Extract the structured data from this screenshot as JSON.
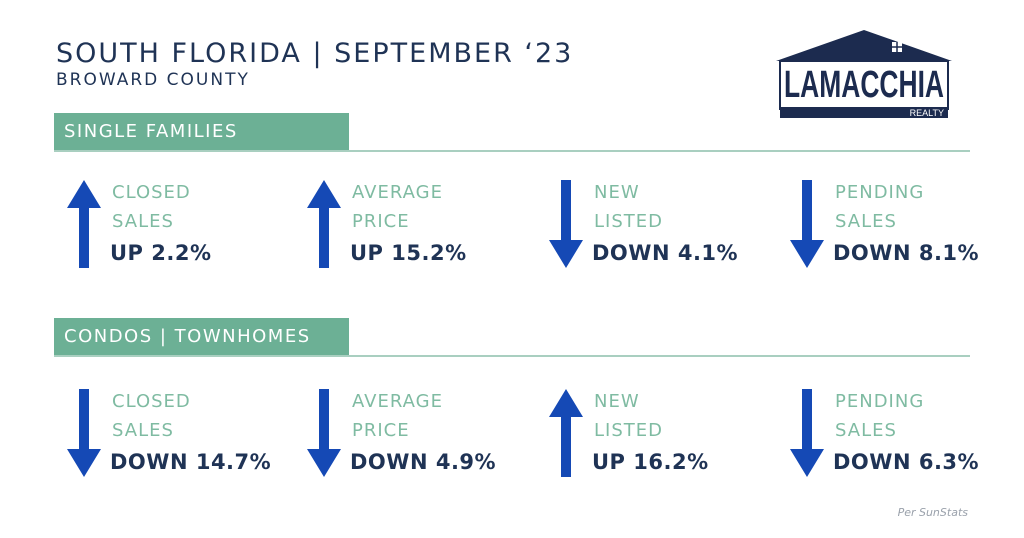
{
  "header": {
    "title": "SOUTH FLORIDA | SEPTEMBER ‘23",
    "subtitle": "BROWARD COUNTY"
  },
  "logo": {
    "text": "LAMACCHIA",
    "subtext": "REALTY",
    "color": "#1c2b4f"
  },
  "colors": {
    "accent_green": "#6cb095",
    "arrow_blue": "#1549b5",
    "label_green": "#7fbba2",
    "navy": "#1f3355"
  },
  "sections": [
    {
      "title": "SINGLE FAMILIES",
      "stats": [
        {
          "line1": "CLOSED",
          "line2": "SALES",
          "value": "UP 2.2%",
          "direction": "up"
        },
        {
          "line1": "AVERAGE",
          "line2": "PRICE",
          "value": "UP 15.2%",
          "direction": "up"
        },
        {
          "line1": "NEW",
          "line2": "LISTED",
          "value": "DOWN 4.1%",
          "direction": "down"
        },
        {
          "line1": "PENDING",
          "line2": "SALES",
          "value": "DOWN 8.1%",
          "direction": "down"
        }
      ]
    },
    {
      "title": "CONDOS | TOWNHOMES",
      "stats": [
        {
          "line1": "CLOSED",
          "line2": "SALES",
          "value": "DOWN 14.7%",
          "direction": "down"
        },
        {
          "line1": "AVERAGE",
          "line2": "PRICE",
          "value": "DOWN 4.9%",
          "direction": "down"
        },
        {
          "line1": "NEW",
          "line2": "LISTED",
          "value": "UP 16.2%",
          "direction": "up"
        },
        {
          "line1": "PENDING",
          "line2": "SALES",
          "value": "DOWN 6.3%",
          "direction": "down"
        }
      ]
    }
  ],
  "footer": {
    "source": "Per SunStats"
  }
}
